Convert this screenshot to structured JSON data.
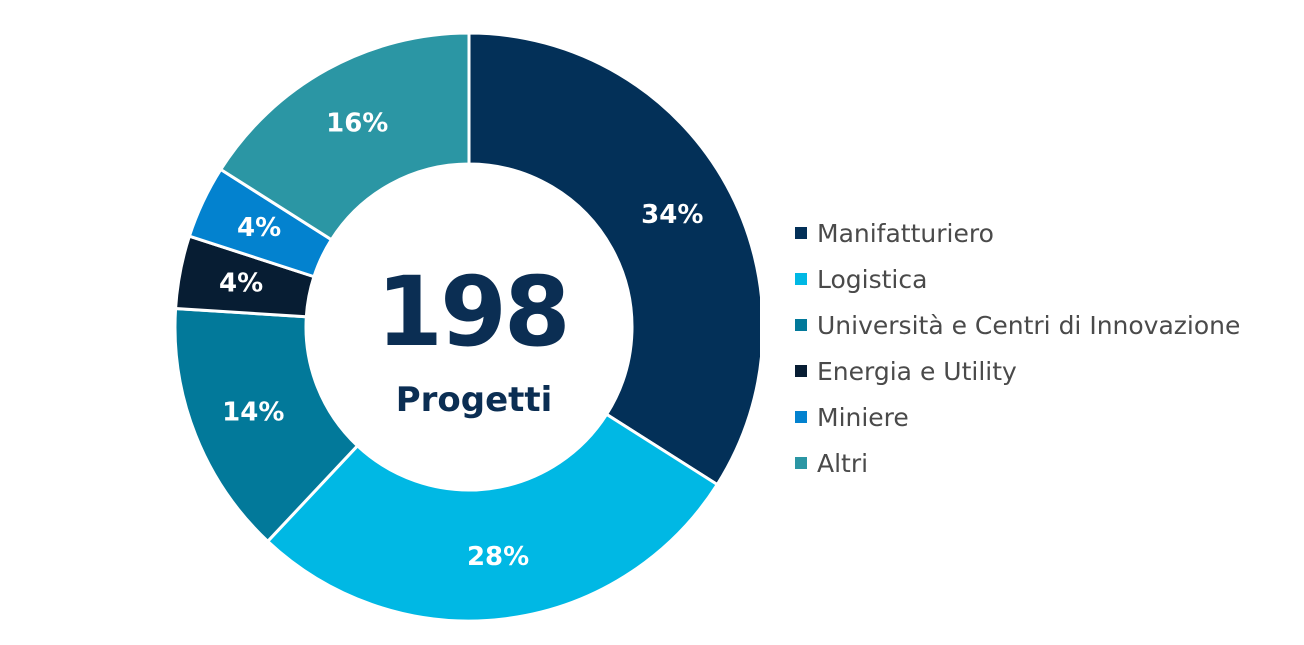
{
  "chart_data": {
    "type": "pie",
    "donut": true,
    "center": {
      "value": "198",
      "label": "Progetti"
    },
    "slices": [
      {
        "label": "Manifatturiero",
        "value": 34,
        "display": "34%",
        "color": "#033058"
      },
      {
        "label": "Logistica",
        "value": 28,
        "display": "28%",
        "color": "#00b8e4"
      },
      {
        "label": "Università e Centri di Innovazione",
        "value": 14,
        "display": "14%",
        "color": "#02799a"
      },
      {
        "label": "Energia e Utility",
        "value": 4,
        "display": "4%",
        "color": "#071d33"
      },
      {
        "label": "Miniere",
        "value": 4,
        "display": "4%",
        "color": "#0382cf"
      },
      {
        "label": "Altri",
        "value": 16,
        "display": "16%",
        "color": "#2b96a4"
      }
    ],
    "legend_position": "right"
  }
}
